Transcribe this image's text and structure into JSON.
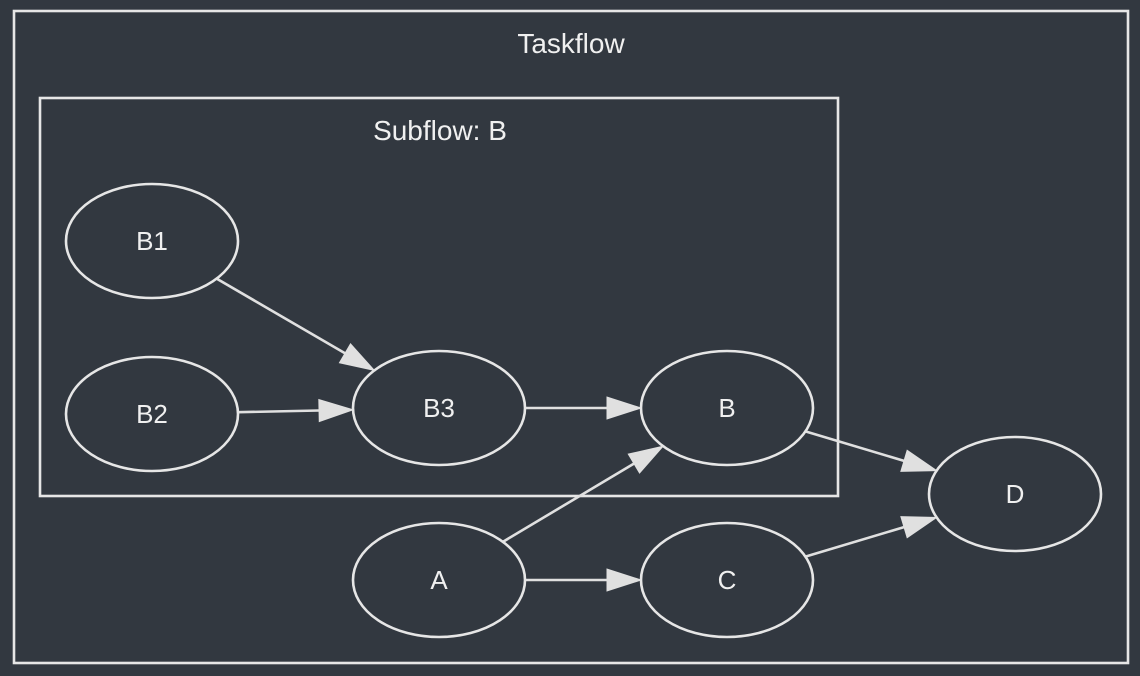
{
  "colors": {
    "background": "#323840",
    "stroke": "#e6e6e6",
    "text": "#f0f0f0"
  },
  "clusters": {
    "taskflow": {
      "title": "Taskflow"
    },
    "subflow": {
      "title": "Subflow: B"
    }
  },
  "nodes": {
    "B1": {
      "label": "B1"
    },
    "B2": {
      "label": "B2"
    },
    "B3": {
      "label": "B3"
    },
    "B": {
      "label": "B"
    },
    "A": {
      "label": "A"
    },
    "C": {
      "label": "C"
    },
    "D": {
      "label": "D"
    }
  },
  "edges": [
    {
      "from": "B1",
      "to": "B3"
    },
    {
      "from": "B2",
      "to": "B3"
    },
    {
      "from": "B3",
      "to": "B"
    },
    {
      "from": "A",
      "to": "B"
    },
    {
      "from": "A",
      "to": "C"
    },
    {
      "from": "B",
      "to": "D"
    },
    {
      "from": "C",
      "to": "D"
    }
  ]
}
